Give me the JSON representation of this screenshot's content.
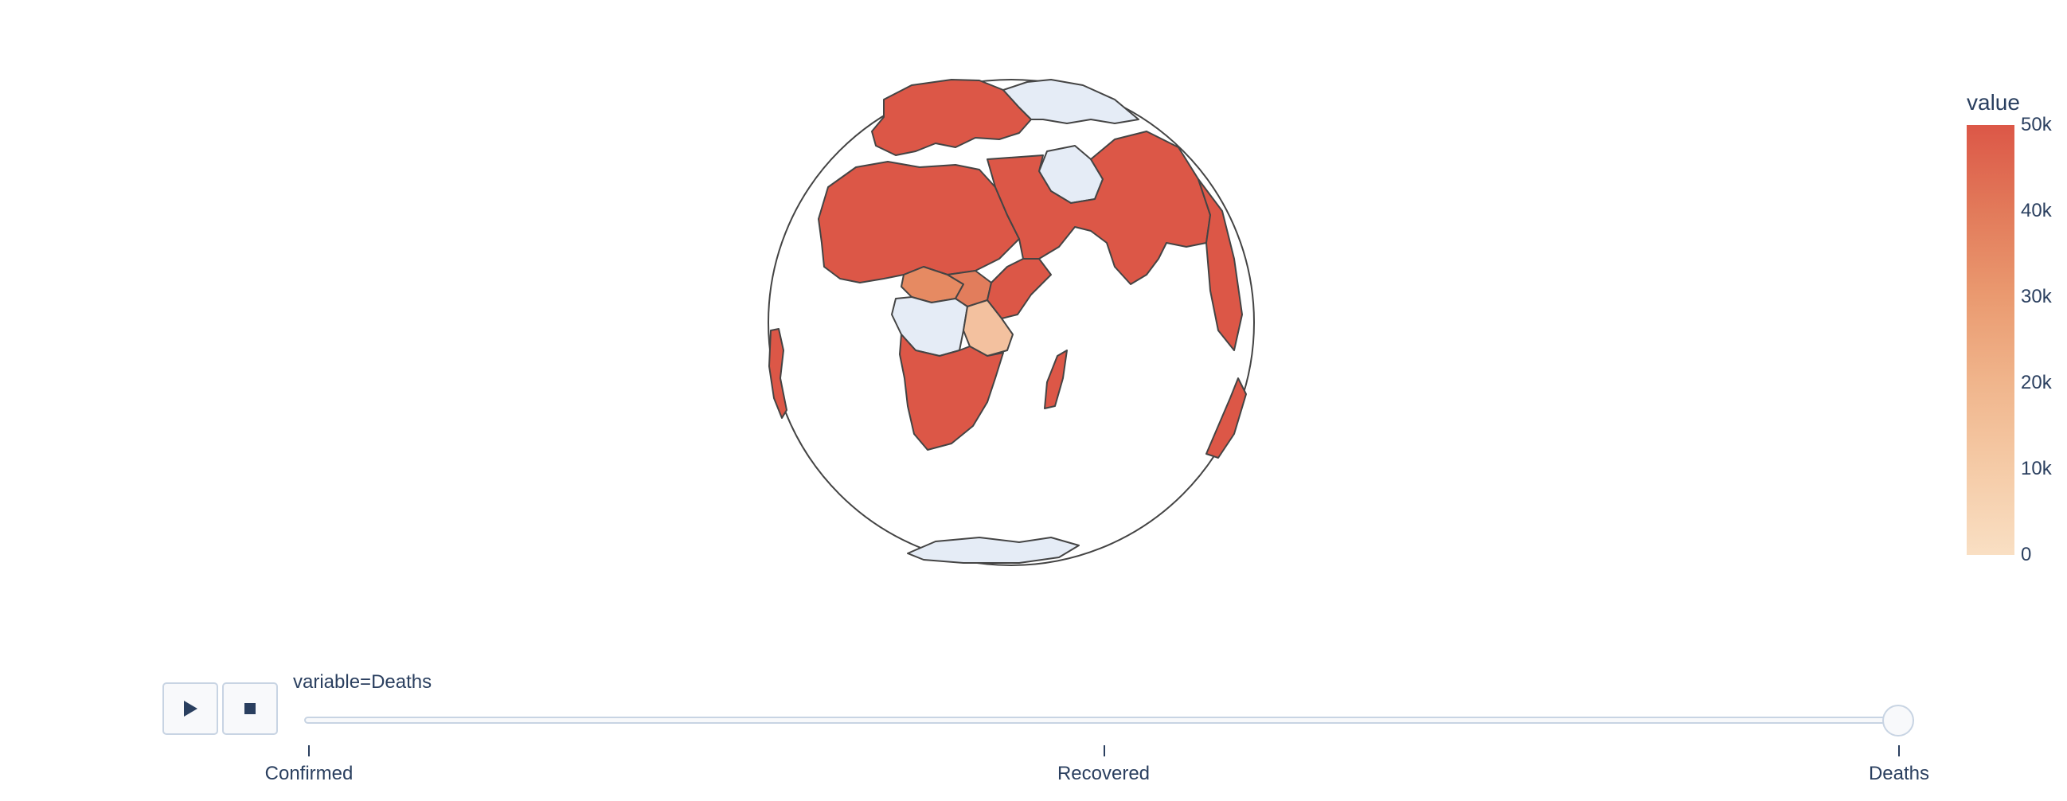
{
  "map": {
    "projection": "orthographic",
    "metric": "Deaths",
    "regions": [
      {
        "name": "Europe",
        "value": 50000
      },
      {
        "name": "North Africa",
        "value": 50000
      },
      {
        "name": "Middle East",
        "value": 50000
      },
      {
        "name": "South Asia",
        "value": 50000
      },
      {
        "name": "Southern Africa",
        "value": 50000
      },
      {
        "name": "South Sudan",
        "value": 28000
      },
      {
        "name": "Central African Republic",
        "value": 30000
      },
      {
        "name": "Tanzania",
        "value": 10000
      },
      {
        "name": "Madagascar",
        "value": 50000
      },
      {
        "name": "DR Congo",
        "value": null
      },
      {
        "name": "Iran",
        "value": null
      },
      {
        "name": "Antarctica",
        "value": null
      }
    ]
  },
  "colorbar": {
    "title": "value",
    "ticks": [
      "50k",
      "40k",
      "30k",
      "20k",
      "10k",
      "0"
    ],
    "range": [
      0,
      50000
    ],
    "colors": [
      "#dc5747",
      "#f9dfc3"
    ],
    "no_data_color": "#e5ecf6"
  },
  "slider": {
    "current_label": "variable=Deaths",
    "steps": [
      "Confirmed",
      "Recovered",
      "Deaths"
    ],
    "active_step": 2
  },
  "controls": {
    "play_icon": "play-icon",
    "stop_icon": "stop-icon"
  }
}
